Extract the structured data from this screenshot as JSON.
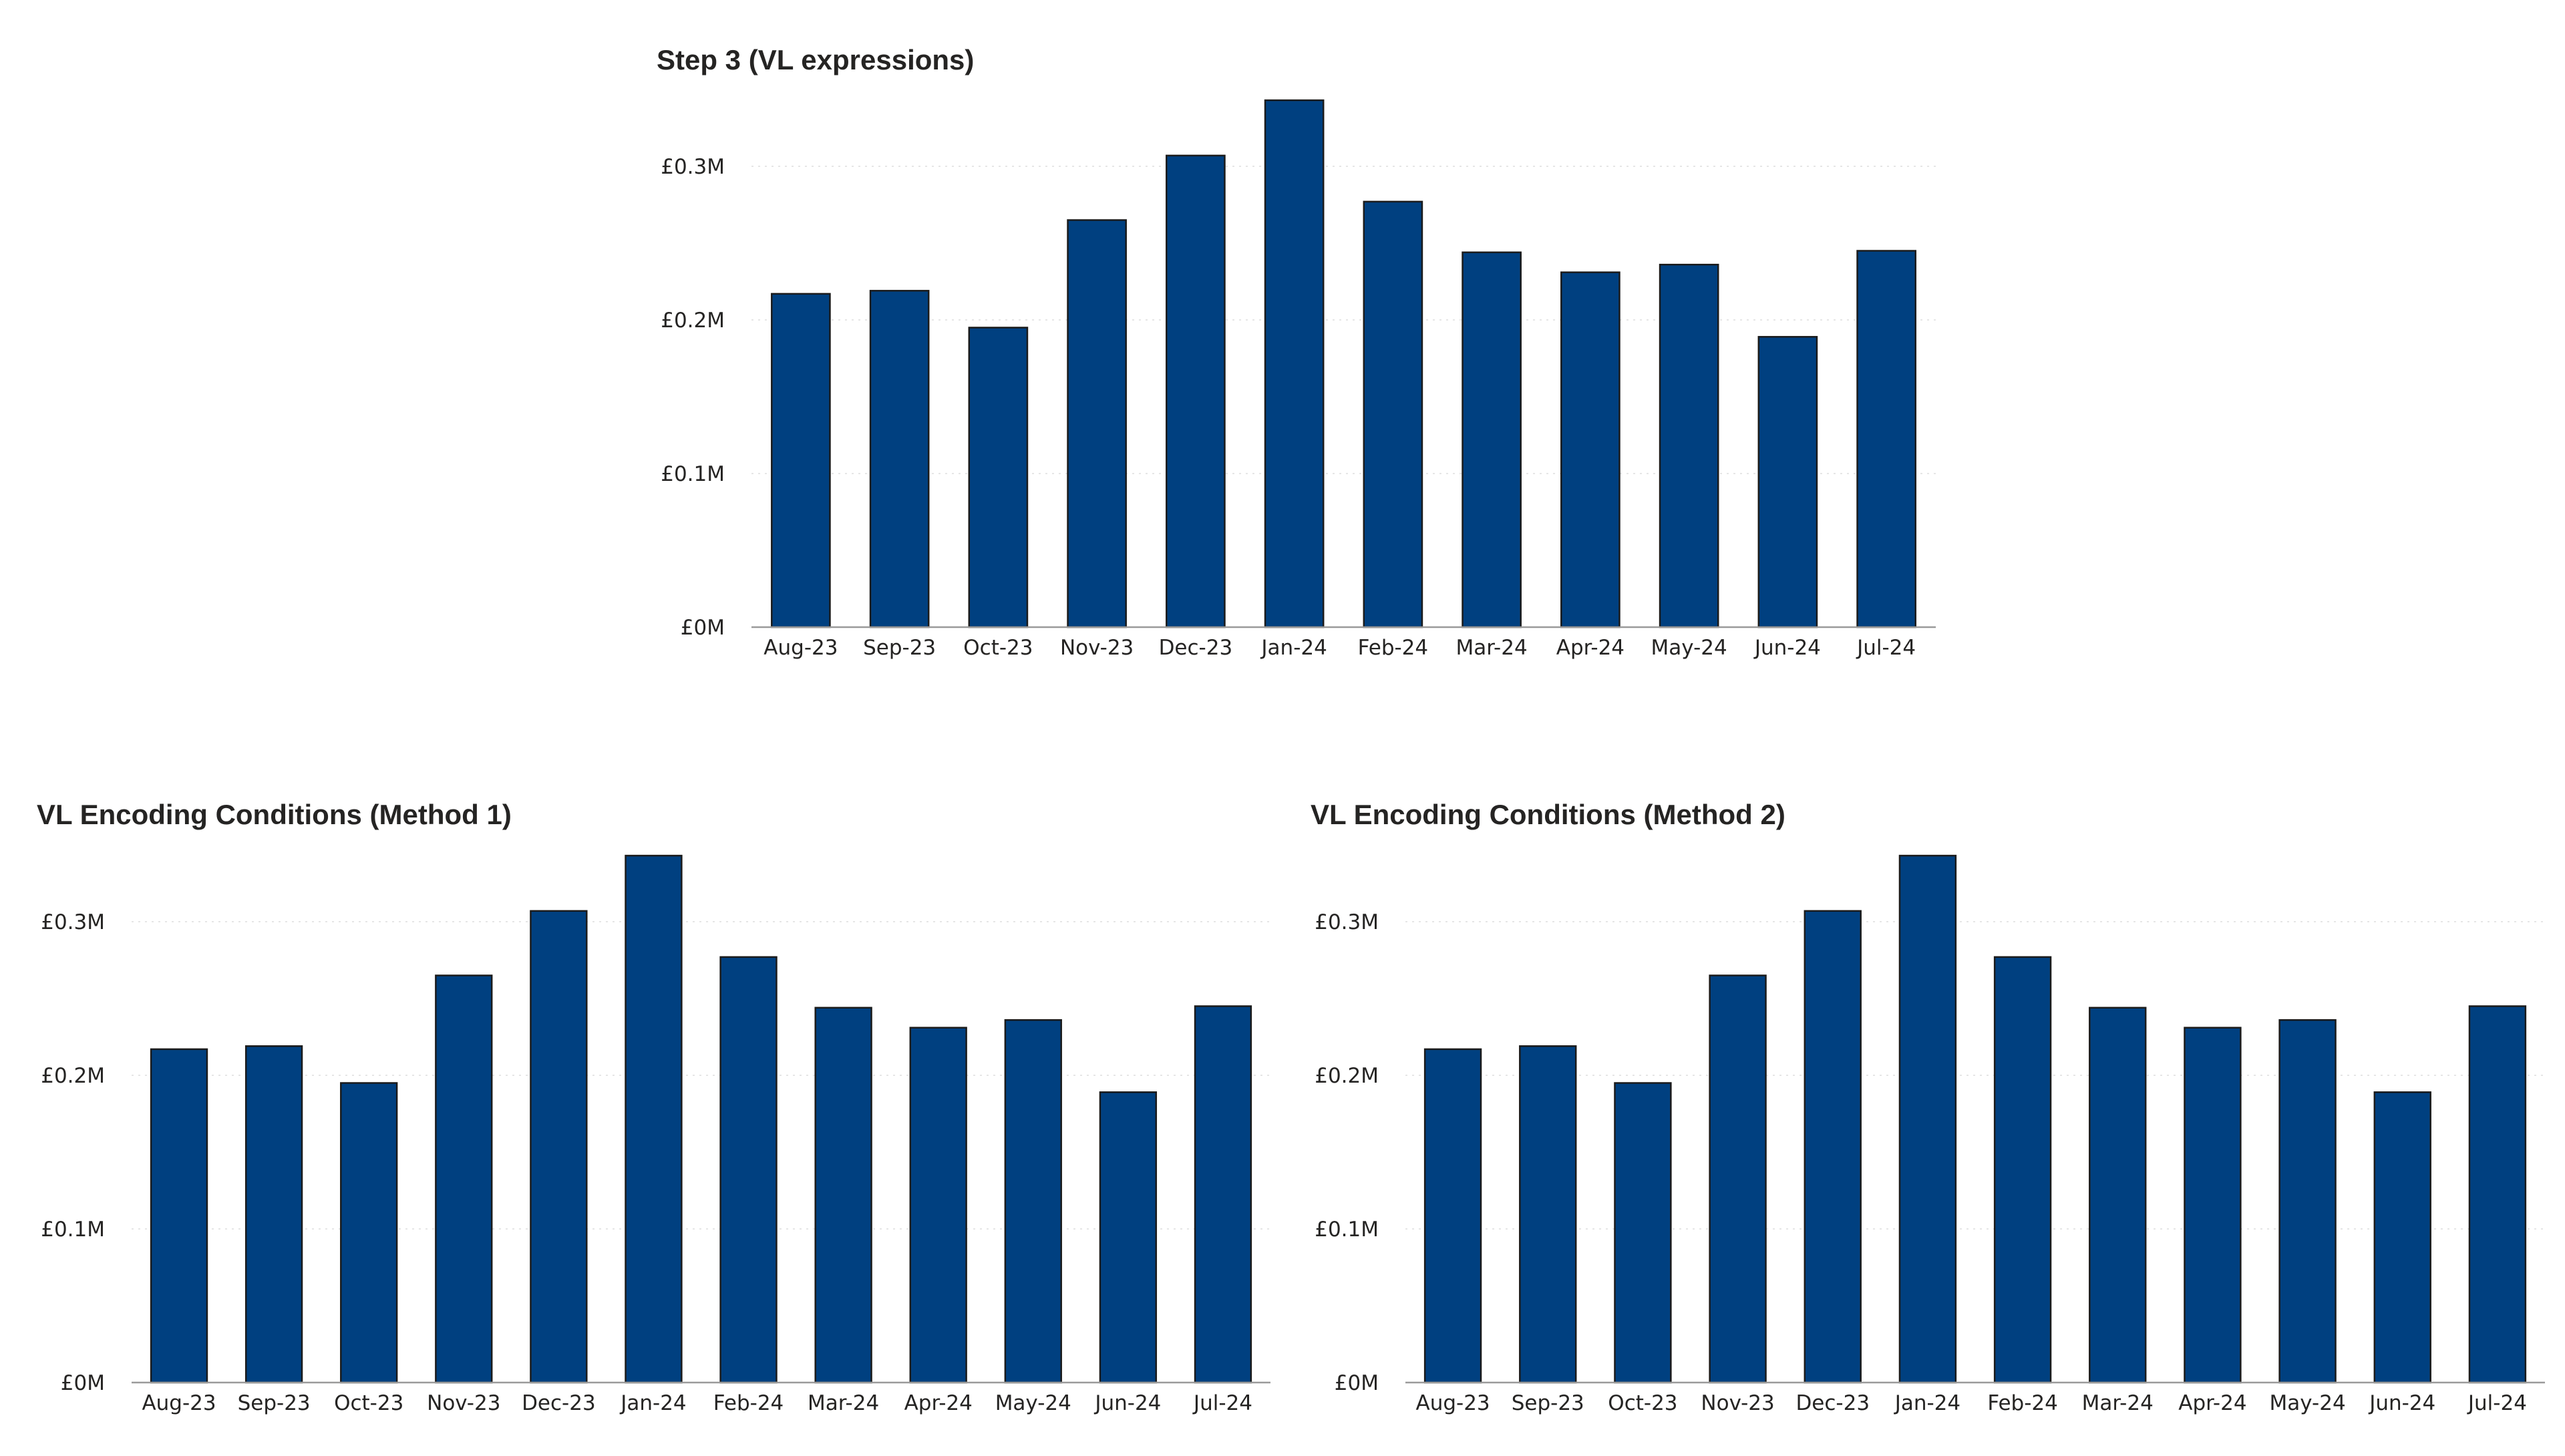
{
  "colors": {
    "bar": "#004080",
    "text": "#252423"
  },
  "chart_data": [
    {
      "type": "bar",
      "title": "Step 3 (VL expressions)",
      "xlabel": "",
      "ylabel": "",
      "ylim": [
        0,
        0.3
      ],
      "yticks": [
        {
          "value": 0,
          "label": "£0M"
        },
        {
          "value": 0.1,
          "label": "£0.1M"
        },
        {
          "value": 0.2,
          "label": "£0.2M"
        },
        {
          "value": 0.3,
          "label": "£0.3M"
        }
      ],
      "grid": true,
      "categories": [
        "Aug-23",
        "Sep-23",
        "Oct-23",
        "Nov-23",
        "Dec-23",
        "Jan-24",
        "Feb-24",
        "Mar-24",
        "Apr-24",
        "May-24",
        "Jun-24",
        "Jul-24"
      ],
      "values": [
        0.217,
        0.219,
        0.195,
        0.265,
        0.307,
        0.343,
        0.277,
        0.244,
        0.231,
        0.236,
        0.189,
        0.245
      ]
    },
    {
      "type": "bar",
      "title": "VL Encoding Conditions (Method 1)",
      "xlabel": "",
      "ylabel": "",
      "ylim": [
        0,
        0.3
      ],
      "yticks": [
        {
          "value": 0,
          "label": "£0M"
        },
        {
          "value": 0.1,
          "label": "£0.1M"
        },
        {
          "value": 0.2,
          "label": "£0.2M"
        },
        {
          "value": 0.3,
          "label": "£0.3M"
        }
      ],
      "grid": true,
      "categories": [
        "Aug-23",
        "Sep-23",
        "Oct-23",
        "Nov-23",
        "Dec-23",
        "Jan-24",
        "Feb-24",
        "Mar-24",
        "Apr-24",
        "May-24",
        "Jun-24",
        "Jul-24"
      ],
      "values": [
        0.217,
        0.219,
        0.195,
        0.265,
        0.307,
        0.343,
        0.277,
        0.244,
        0.231,
        0.236,
        0.189,
        0.245
      ]
    },
    {
      "type": "bar",
      "title": "VL Encoding Conditions (Method 2)",
      "xlabel": "",
      "ylabel": "",
      "ylim": [
        0,
        0.3
      ],
      "yticks": [
        {
          "value": 0,
          "label": "£0M"
        },
        {
          "value": 0.1,
          "label": "£0.1M"
        },
        {
          "value": 0.2,
          "label": "£0.2M"
        },
        {
          "value": 0.3,
          "label": "£0.3M"
        }
      ],
      "grid": true,
      "categories": [
        "Aug-23",
        "Sep-23",
        "Oct-23",
        "Nov-23",
        "Dec-23",
        "Jan-24",
        "Feb-24",
        "Mar-24",
        "Apr-24",
        "May-24",
        "Jun-24",
        "Jul-24"
      ],
      "values": [
        0.217,
        0.219,
        0.195,
        0.265,
        0.307,
        0.343,
        0.277,
        0.244,
        0.231,
        0.236,
        0.189,
        0.245
      ]
    }
  ]
}
